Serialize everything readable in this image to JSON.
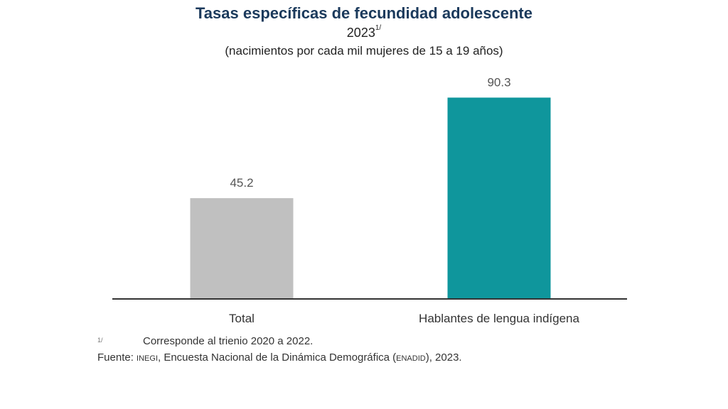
{
  "chart_data": {
    "type": "bar",
    "title": "Tasas específicas de fecundidad adolescente",
    "year": "2023",
    "year_note_mark": "1/",
    "subtitle": "(nacimientos por cada mil mujeres de 15 a 19 años)",
    "categories": [
      "Total",
      "Hablantes de lengua indígena"
    ],
    "values": [
      45.2,
      90.3
    ],
    "data_labels": [
      "45.2",
      "90.3"
    ],
    "colors": [
      "#c0c0c0",
      "#0f969c"
    ],
    "xlabel": "",
    "ylabel": "",
    "ylim": [
      0,
      100
    ],
    "grid": false,
    "legend": "none"
  },
  "footnotes": {
    "mark": "1/",
    "note": "Corresponde al trienio 2020 a 2022.",
    "source_prefix": "Fuente: ",
    "source_org": "INEGI",
    "source_mid": ", Encuesta Nacional de la Dinámica Demográfica (",
    "source_survey": "ENADID",
    "source_end": "), 2023."
  }
}
